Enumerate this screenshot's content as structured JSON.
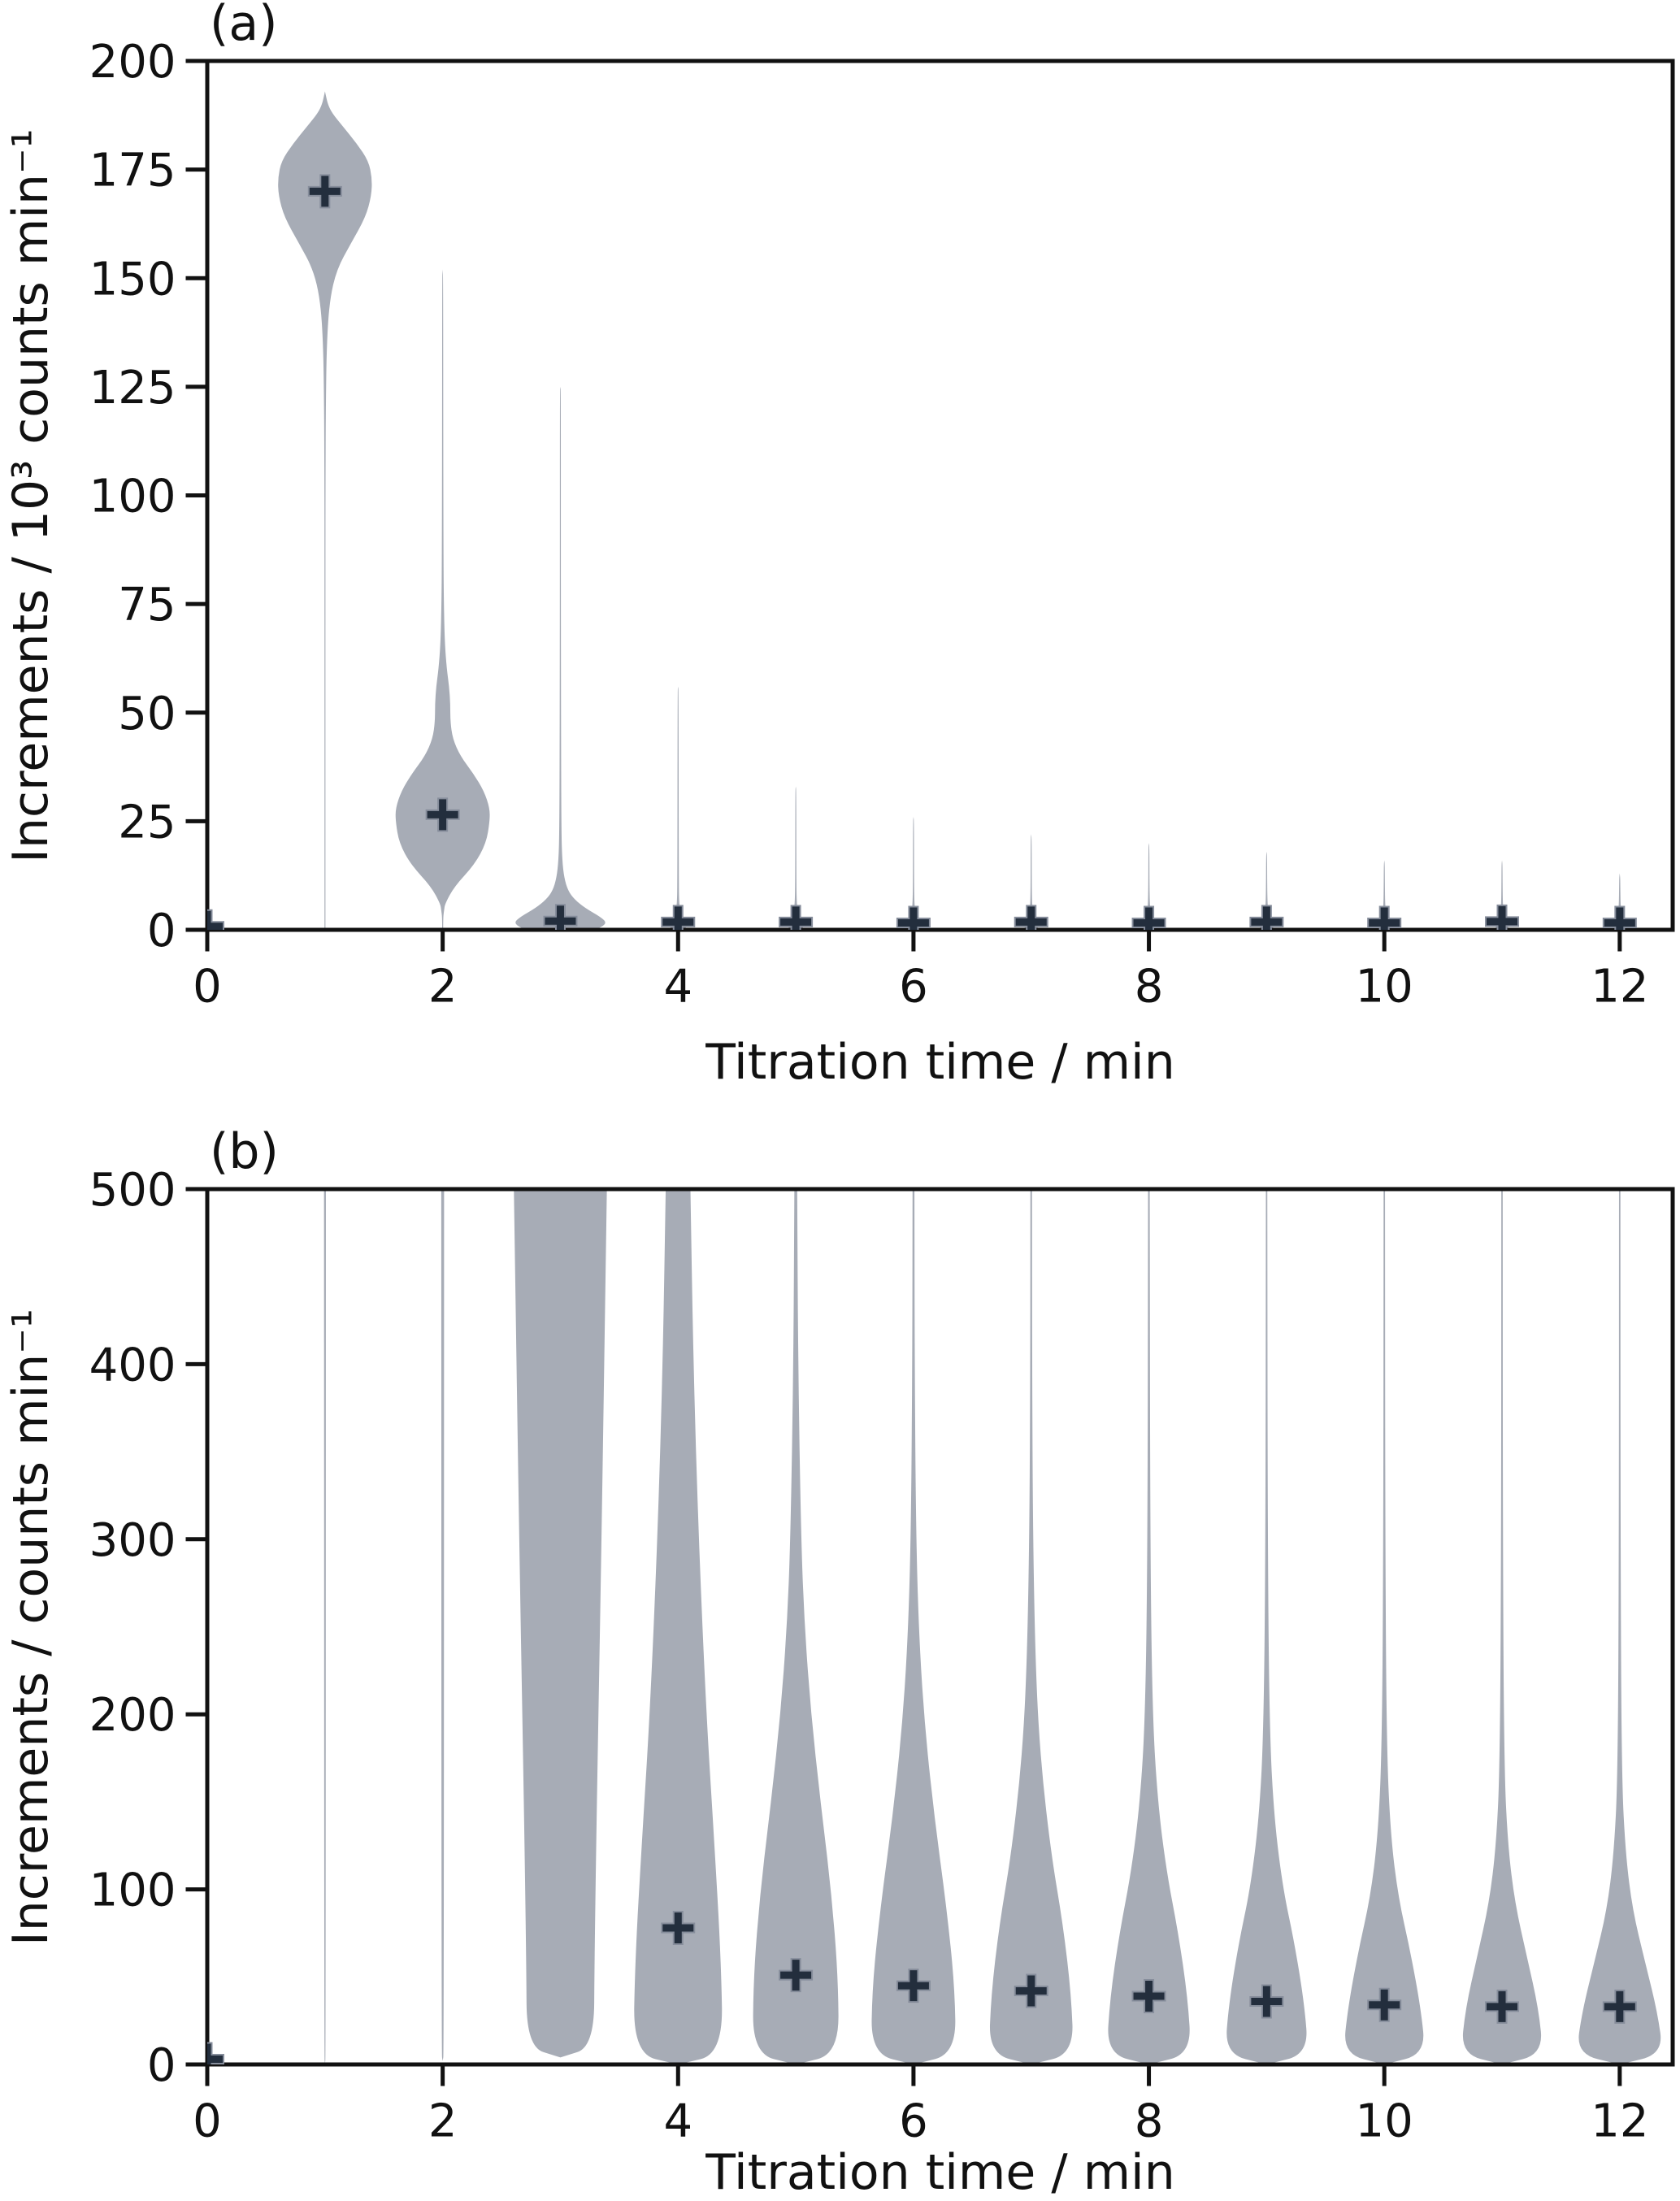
{
  "figure": {
    "background": "#ffffff",
    "violin_color": "#a7acb6",
    "marker_color": "#232e3d",
    "marker_edge_color": "#868d9b",
    "axis_color": "#111111"
  },
  "chart_data": [
    {
      "type": "violin",
      "panel_label": "(a)",
      "xlabel": "Titration time / min",
      "ylabel": "Increments / 10³ counts min⁻¹",
      "xlim": [
        0,
        12.45
      ],
      "ylim": [
        0,
        200
      ],
      "xticks": [
        0,
        2,
        4,
        6,
        8,
        10,
        12
      ],
      "yticks": [
        0,
        25,
        50,
        75,
        100,
        125,
        150,
        175,
        200
      ],
      "grid": false,
      "legend": null,
      "mean_marker": "plus",
      "violins": [
        {
          "x": 0,
          "mean": 0.8,
          "profile": []
        },
        {
          "x": 1,
          "mean": 170,
          "profile": [
            [
              0,
              0.004
            ],
            [
              90,
              0.004
            ],
            [
              105,
              0.005
            ],
            [
              120,
              0.007
            ],
            [
              135,
              0.015
            ],
            [
              145,
              0.04
            ],
            [
              152,
              0.1
            ],
            [
              158,
              0.22
            ],
            [
              164,
              0.345
            ],
            [
              169,
              0.395
            ],
            [
              173,
              0.4
            ],
            [
              177,
              0.37
            ],
            [
              181,
              0.27
            ],
            [
              185,
              0.15
            ],
            [
              188,
              0.06
            ],
            [
              190,
              0.025
            ],
            [
              192,
              0.008
            ],
            [
              193,
              0
            ]
          ]
        },
        {
          "x": 2,
          "mean": 26.5,
          "profile": [
            [
              0,
              0.004
            ],
            [
              3,
              0.005
            ],
            [
              4.5,
              0.012
            ],
            [
              6,
              0.02
            ],
            [
              10,
              0.1
            ],
            [
              15,
              0.27
            ],
            [
              20,
              0.37
            ],
            [
              25,
              0.4
            ],
            [
              28,
              0.4
            ],
            [
              32,
              0.35
            ],
            [
              36,
              0.26
            ],
            [
              40,
              0.15
            ],
            [
              44,
              0.085
            ],
            [
              48,
              0.065
            ],
            [
              52,
              0.065
            ],
            [
              56,
              0.055
            ],
            [
              60,
              0.035
            ],
            [
              66,
              0.018
            ],
            [
              75,
              0.01
            ],
            [
              85,
              0.007
            ],
            [
              110,
              0.005
            ],
            [
              150,
              0.004
            ],
            [
              152,
              0
            ]
          ]
        },
        {
          "x": 3,
          "mean": 2,
          "profile": [
            [
              0,
              0.3
            ],
            [
              1.5,
              0.4
            ],
            [
              3,
              0.34
            ],
            [
              5,
              0.21
            ],
            [
              7,
              0.12
            ],
            [
              9,
              0.065
            ],
            [
              12,
              0.032
            ],
            [
              16,
              0.016
            ],
            [
              22,
              0.009
            ],
            [
              40,
              0.006
            ],
            [
              80,
              0.004
            ],
            [
              124,
              0.004
            ],
            [
              125,
              0
            ]
          ]
        },
        {
          "x": 4,
          "mean": 1.8,
          "profile": [
            [
              0,
              0.06
            ],
            [
              1,
              0.07
            ],
            [
              2,
              0.05
            ],
            [
              4,
              0.02
            ],
            [
              6,
              0.01
            ],
            [
              10,
              0.006
            ],
            [
              55,
              0.004
            ],
            [
              56,
              0
            ]
          ]
        },
        {
          "x": 5,
          "mean": 1.8,
          "profile": [
            [
              0,
              0.055
            ],
            [
              1,
              0.065
            ],
            [
              2,
              0.045
            ],
            [
              4,
              0.018
            ],
            [
              6,
              0.009
            ],
            [
              10,
              0.005
            ],
            [
              32,
              0.004
            ],
            [
              33,
              0
            ]
          ]
        },
        {
          "x": 6,
          "mean": 1.6,
          "profile": [
            [
              0,
              0.05
            ],
            [
              1,
              0.06
            ],
            [
              2,
              0.04
            ],
            [
              4,
              0.016
            ],
            [
              6,
              0.008
            ],
            [
              10,
              0.005
            ],
            [
              25,
              0.004
            ],
            [
              26,
              0
            ]
          ]
        },
        {
          "x": 7,
          "mean": 1.8,
          "profile": [
            [
              0,
              0.05
            ],
            [
              1,
              0.06
            ],
            [
              2,
              0.04
            ],
            [
              4,
              0.015
            ],
            [
              6,
              0.008
            ],
            [
              10,
              0.005
            ],
            [
              21,
              0.004
            ],
            [
              22,
              0
            ]
          ]
        },
        {
          "x": 8,
          "mean": 1.6,
          "profile": [
            [
              0,
              0.05
            ],
            [
              1,
              0.06
            ],
            [
              2,
              0.04
            ],
            [
              4,
              0.015
            ],
            [
              6,
              0.008
            ],
            [
              10,
              0.005
            ],
            [
              19,
              0.004
            ],
            [
              20,
              0
            ]
          ]
        },
        {
          "x": 9,
          "mean": 1.8,
          "profile": [
            [
              0,
              0.05
            ],
            [
              1,
              0.06
            ],
            [
              2,
              0.04
            ],
            [
              4,
              0.015
            ],
            [
              6,
              0.008
            ],
            [
              10,
              0.005
            ],
            [
              17,
              0.004
            ],
            [
              18,
              0
            ]
          ]
        },
        {
          "x": 10,
          "mean": 1.6,
          "profile": [
            [
              0,
              0.05
            ],
            [
              1,
              0.055
            ],
            [
              2,
              0.038
            ],
            [
              4,
              0.014
            ],
            [
              6,
              0.007
            ],
            [
              10,
              0.005
            ],
            [
              15,
              0.004
            ],
            [
              16,
              0
            ]
          ]
        },
        {
          "x": 11,
          "mean": 1.9,
          "profile": [
            [
              0,
              0.05
            ],
            [
              1,
              0.055
            ],
            [
              2,
              0.038
            ],
            [
              4,
              0.014
            ],
            [
              6,
              0.007
            ],
            [
              10,
              0.005
            ],
            [
              15,
              0.004
            ],
            [
              16,
              0
            ]
          ]
        },
        {
          "x": 12,
          "mean": 1.6,
          "profile": [
            [
              0,
              0.05
            ],
            [
              1,
              0.055
            ],
            [
              2,
              0.036
            ],
            [
              4,
              0.013
            ],
            [
              6,
              0.007
            ],
            [
              10,
              0.005
            ],
            [
              12,
              0.004
            ],
            [
              13,
              0
            ]
          ]
        }
      ]
    },
    {
      "type": "violin",
      "panel_label": "(b)",
      "xlabel": "Titration time / min",
      "ylabel": "Increments / counts min⁻¹",
      "xlim": [
        0,
        12.45
      ],
      "ylim": [
        0,
        500
      ],
      "xticks": [
        0,
        2,
        4,
        6,
        8,
        10,
        12
      ],
      "yticks": [
        0,
        100,
        200,
        300,
        400,
        500
      ],
      "grid": false,
      "legend": null,
      "mean_marker": "plus",
      "violins": [
        {
          "x": 0,
          "mean": 3,
          "profile": []
        },
        {
          "x": 1,
          "mean": null,
          "profile": [
            [
              0,
              0
            ],
            [
              5,
              0.006
            ],
            [
              500,
              0.008
            ]
          ]
        },
        {
          "x": 2,
          "mean": null,
          "profile": [
            [
              2,
              0
            ],
            [
              6,
              0.01
            ],
            [
              500,
              0.012
            ]
          ]
        },
        {
          "x": 3,
          "mean": null,
          "profile": [
            [
              4,
              0
            ],
            [
              10,
              0.285
            ],
            [
              60,
              0.29
            ],
            [
              150,
              0.31
            ],
            [
              300,
              0.35
            ],
            [
              500,
              0.395
            ]
          ]
        },
        {
          "x": 4,
          "mean": 78,
          "profile": [
            [
              0,
              0
            ],
            [
              6,
              0.38
            ],
            [
              60,
              0.365
            ],
            [
              130,
              0.305
            ],
            [
              200,
              0.24
            ],
            [
              300,
              0.175
            ],
            [
              400,
              0.13
            ],
            [
              500,
              0.105
            ]
          ]
        },
        {
          "x": 5,
          "mean": 51,
          "profile": [
            [
              0,
              0
            ],
            [
              6,
              0.365
            ],
            [
              50,
              0.36
            ],
            [
              100,
              0.3
            ],
            [
              150,
              0.21
            ],
            [
              200,
              0.13
            ],
            [
              250,
              0.075
            ],
            [
              300,
              0.045
            ],
            [
              400,
              0.02
            ],
            [
              500,
              0.012
            ]
          ]
        },
        {
          "x": 6,
          "mean": 45,
          "profile": [
            [
              0,
              0
            ],
            [
              6,
              0.36
            ],
            [
              45,
              0.35
            ],
            [
              90,
              0.28
            ],
            [
              140,
              0.18
            ],
            [
              190,
              0.1
            ],
            [
              240,
              0.05
            ],
            [
              300,
              0.022
            ],
            [
              400,
              0.01
            ],
            [
              500,
              0.008
            ]
          ]
        },
        {
          "x": 7,
          "mean": 42,
          "profile": [
            [
              0,
              0
            ],
            [
              6,
              0.36
            ],
            [
              40,
              0.34
            ],
            [
              80,
              0.27
            ],
            [
              120,
              0.17
            ],
            [
              170,
              0.085
            ],
            [
              220,
              0.04
            ],
            [
              300,
              0.015
            ],
            [
              400,
              0.008
            ],
            [
              500,
              0.007
            ]
          ]
        },
        {
          "x": 8,
          "mean": 39,
          "profile": [
            [
              0,
              0
            ],
            [
              6,
              0.36
            ],
            [
              38,
              0.33
            ],
            [
              75,
              0.25
            ],
            [
              110,
              0.15
            ],
            [
              150,
              0.075
            ],
            [
              200,
              0.03
            ],
            [
              300,
              0.011
            ],
            [
              500,
              0.007
            ]
          ]
        },
        {
          "x": 9,
          "mean": 36,
          "profile": [
            [
              0,
              0
            ],
            [
              6,
              0.355
            ],
            [
              35,
              0.32
            ],
            [
              70,
              0.235
            ],
            [
              100,
              0.14
            ],
            [
              140,
              0.065
            ],
            [
              190,
              0.025
            ],
            [
              300,
              0.009
            ],
            [
              500,
              0.006
            ]
          ]
        },
        {
          "x": 10,
          "mean": 34,
          "profile": [
            [
              0,
              0
            ],
            [
              6,
              0.35
            ],
            [
              32,
              0.31
            ],
            [
              65,
              0.22
            ],
            [
              95,
              0.12
            ],
            [
              130,
              0.055
            ],
            [
              180,
              0.02
            ],
            [
              300,
              0.008
            ],
            [
              500,
              0.006
            ]
          ]
        },
        {
          "x": 11,
          "mean": 33,
          "profile": [
            [
              0,
              0
            ],
            [
              6,
              0.35
            ],
            [
              32,
              0.31
            ],
            [
              62,
              0.21
            ],
            [
              92,
              0.11
            ],
            [
              125,
              0.05
            ],
            [
              170,
              0.018
            ],
            [
              300,
              0.007
            ],
            [
              500,
              0.006
            ]
          ]
        },
        {
          "x": 12,
          "mean": 33,
          "profile": [
            [
              0,
              0
            ],
            [
              6,
              0.37
            ],
            [
              30,
              0.32
            ],
            [
              60,
              0.21
            ],
            [
              88,
              0.11
            ],
            [
              120,
              0.05
            ],
            [
              165,
              0.016
            ],
            [
              300,
              0.007
            ],
            [
              500,
              0.006
            ]
          ]
        }
      ]
    }
  ]
}
